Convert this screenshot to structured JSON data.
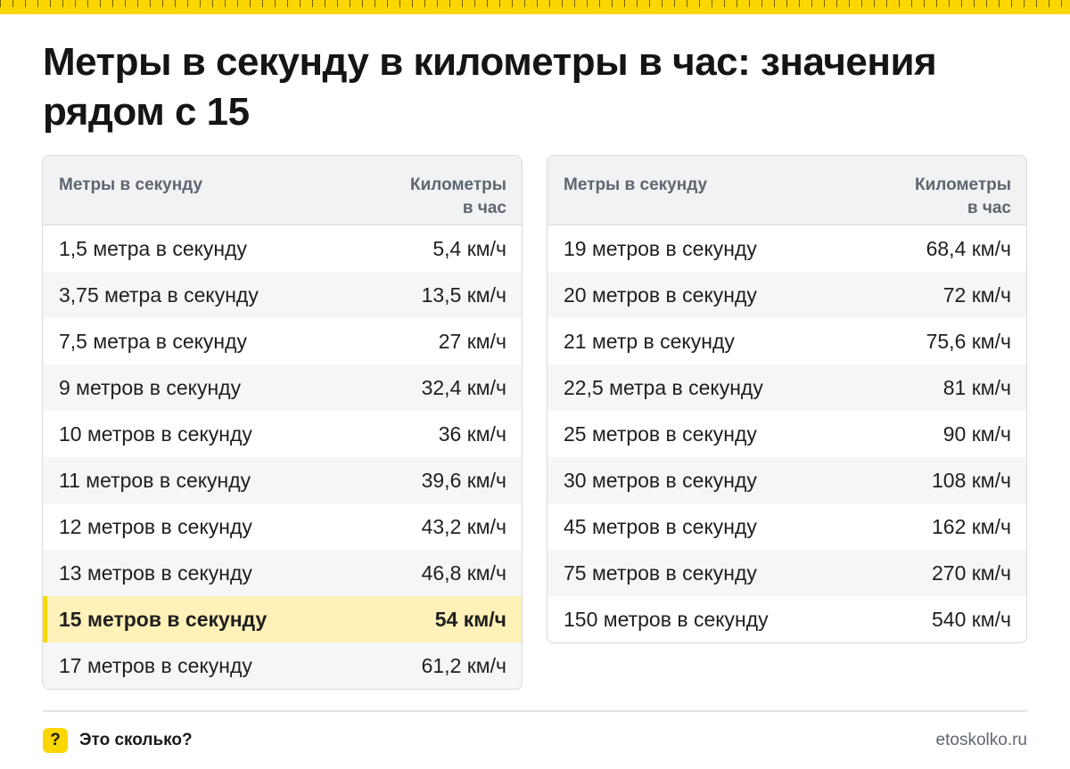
{
  "title": "Метры в секунду в километры в час: значения рядом с 15",
  "colors": {
    "accent": "#fcd600",
    "highlight_row": "#fff1b8",
    "header_bg": "#f1f2f4"
  },
  "tables": [
    {
      "headers": [
        "Метры в секунду",
        "Километры\nв час"
      ],
      "rows": [
        [
          "1,5 метра в секунду",
          "5,4 км/ч"
        ],
        [
          "3,75 метра в секунду",
          "13,5 км/ч"
        ],
        [
          "7,5 метра в секунду",
          "27 км/ч"
        ],
        [
          "9 метров в секунду",
          "32,4 км/ч"
        ],
        [
          "10 метров в секунду",
          "36 км/ч"
        ],
        [
          "11 метров в секунду",
          "39,6 км/ч"
        ],
        [
          "12 метров в секунду",
          "43,2 км/ч"
        ],
        [
          "13 метров в секунду",
          "46,8 км/ч"
        ],
        [
          "15 метров в секунду",
          "54 км/ч"
        ],
        [
          "17 метров в секунду",
          "61,2 км/ч"
        ]
      ],
      "highlight_index": 8
    },
    {
      "headers": [
        "Метры в секунду",
        "Километры\nв час"
      ],
      "rows": [
        [
          "19 метров в секунду",
          "68,4 км/ч"
        ],
        [
          "20 метров в секунду",
          "72 км/ч"
        ],
        [
          "21 метр в секунду",
          "75,6 км/ч"
        ],
        [
          "22,5 метра в секунду",
          "81 км/ч"
        ],
        [
          "25 метров в секунду",
          "90 км/ч"
        ],
        [
          "30 метров в секунду",
          "108 км/ч"
        ],
        [
          "45 метров в секунду",
          "162 км/ч"
        ],
        [
          "75 метров в секунду",
          "270 км/ч"
        ],
        [
          "150 метров в секунду",
          "540 км/ч"
        ]
      ],
      "highlight_index": -1
    }
  ],
  "footer": {
    "logo_symbol": "?",
    "logo_text": "Это сколько?",
    "site": "etoskolko.ru"
  }
}
